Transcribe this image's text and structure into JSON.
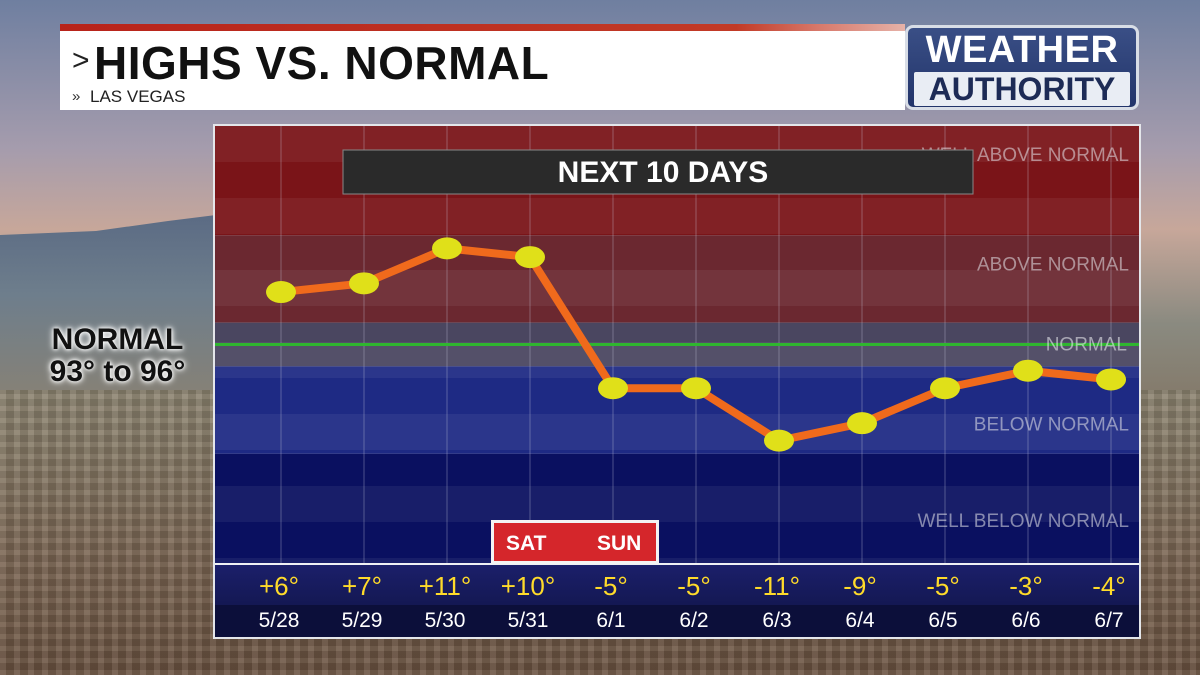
{
  "header": {
    "title": "HIGHS VS. NORMAL",
    "subtitle": "LAS VEGAS",
    "title_arrow": ">",
    "subtitle_arrow": "»"
  },
  "logo": {
    "line1": "WEATHER",
    "line2": "AUTHORITY"
  },
  "normal_legend": {
    "line1": "NORMAL",
    "line2": "93° to 96°"
  },
  "colors": {
    "line": "#f06a1c",
    "marker": "#e0e019",
    "normal_line": "#2fb52f",
    "banner_bg": "#2a2a2a",
    "weekend_badge": "#d5262b"
  },
  "chart_data": {
    "type": "line",
    "title": "NEXT 10 DAYS",
    "categories": [
      "5/28",
      "5/29",
      "5/30",
      "5/31",
      "6/1",
      "6/2",
      "6/3",
      "6/4",
      "6/5",
      "6/6",
      "6/7"
    ],
    "anomaly_labels": [
      "+6°",
      "+7°",
      "+11°",
      "+10°",
      "-5°",
      "-5°",
      "-11°",
      "-9°",
      "-5°",
      "-3°",
      "-4°"
    ],
    "series": [
      {
        "values": [
          6,
          7,
          11,
          10,
          -5,
          -5,
          -11,
          -9,
          -5,
          -3,
          -4
        ]
      }
    ],
    "ylim": [
      -25,
      25
    ],
    "normal_value": 0,
    "bands": [
      {
        "label": "WELL ABOVE NORMAL",
        "min": 12.5,
        "max": 25,
        "color": "#7a1418"
      },
      {
        "label": "ABOVE NORMAL",
        "min": 2.5,
        "max": 12.5,
        "color": "#6b2830"
      },
      {
        "label": "NORMAL",
        "min": -2.5,
        "max": 2.5,
        "color": "#4a4660"
      },
      {
        "label": "BELOW NORMAL",
        "min": -12.5,
        "max": -2.5,
        "color": "#1e2a84"
      },
      {
        "label": "WELL BELOW NORMAL",
        "min": -25,
        "max": -12.5,
        "color": "#0a1060"
      }
    ],
    "weekend": {
      "sat": "SAT",
      "sun": "SUN"
    },
    "grid": true
  }
}
